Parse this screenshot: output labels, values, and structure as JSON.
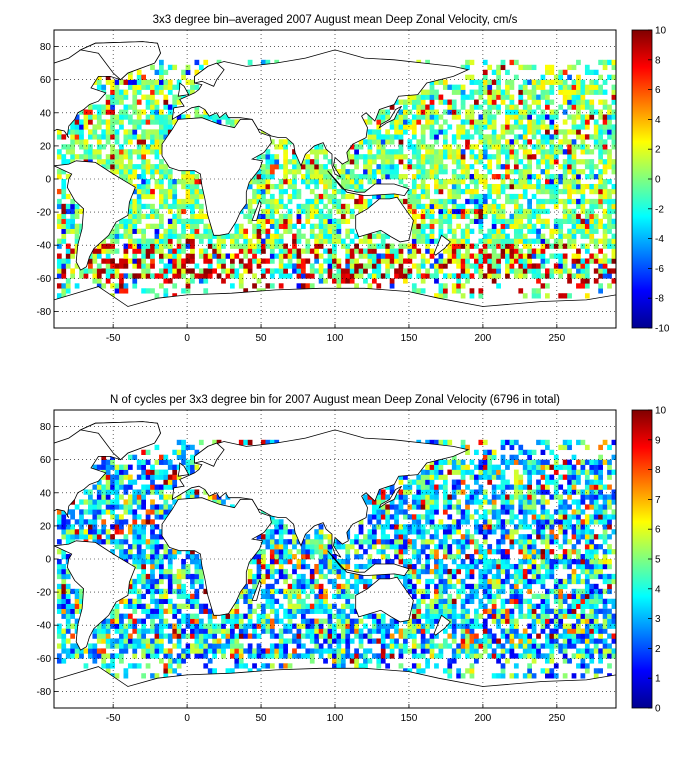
{
  "chart_data": [
    {
      "type": "heatmap",
      "title": "3x3 degree bin–averaged 2007 August mean Deep Zonal Velocity, cm/s",
      "xlim": [
        -90,
        290
      ],
      "ylim": [
        -90,
        90
      ],
      "xticks": [
        -50,
        0,
        50,
        100,
        150,
        200,
        250
      ],
      "yticks": [
        80,
        60,
        40,
        20,
        0,
        -20,
        -40,
        -60,
        -80
      ],
      "bin_size_deg": 3,
      "grid": "dotted",
      "colorbar": {
        "min": -10,
        "max": 10,
        "ticks": [
          10,
          8,
          6,
          4,
          2,
          0,
          -2,
          -4,
          -6,
          -8,
          -10
        ],
        "colormap": "jet"
      },
      "colorscale_range": [
        -10,
        10
      ],
      "seed": 12345
    },
    {
      "type": "heatmap",
      "title": "N of cycles per 3x3 degree bin for 2007 August mean Deep Zonal Velocity (6796 in total)",
      "xlim": [
        -90,
        290
      ],
      "ylim": [
        -90,
        90
      ],
      "xticks": [
        -50,
        0,
        50,
        100,
        150,
        200,
        250
      ],
      "yticks": [
        80,
        60,
        40,
        20,
        0,
        -20,
        -40,
        -60,
        -80
      ],
      "bin_size_deg": 3,
      "grid": "dotted",
      "colorbar": {
        "min": 0,
        "max": 10,
        "ticks": [
          10,
          9,
          8,
          7,
          6,
          5,
          4,
          3,
          2,
          1,
          0
        ],
        "colormap": "jet"
      },
      "colorscale_range": [
        0,
        10
      ],
      "seed": 6796
    }
  ]
}
